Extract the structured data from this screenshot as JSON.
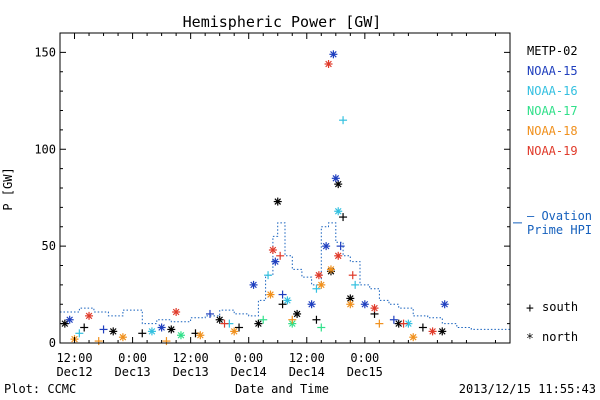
{
  "chart_data": {
    "type": "scatter",
    "title": "Hemispheric Power [GW]",
    "xlabel": "Date and Time",
    "ylabel": "P [GW]",
    "ylim": [
      0,
      160
    ],
    "yticks": [
      0,
      50,
      100,
      150
    ],
    "xlim": [
      "2013-12-12 09:00",
      "2013-12-16 06:00"
    ],
    "xticks": [
      {
        "line1": "12:00",
        "line2": "Dec12",
        "t": "2013-12-12 12:00"
      },
      {
        "line1": "0:00",
        "line2": "Dec13",
        "t": "2013-12-13 00:00"
      },
      {
        "line1": "12:00",
        "line2": "Dec13",
        "t": "2013-12-13 12:00"
      },
      {
        "line1": "0:00",
        "line2": "Dec14",
        "t": "2013-12-14 00:00"
      },
      {
        "line1": "12:00",
        "line2": "Dec14",
        "t": "2013-12-14 12:00"
      },
      {
        "line1": "0:00",
        "line2": "Dec15",
        "t": "2013-12-15 00:00"
      }
    ],
    "legend_position": "right",
    "footer_left": "Plot: CCMC",
    "footer_right": "2013/12/15 11:55:43",
    "markers": {
      "south_symbol": "+",
      "south_label": "south",
      "north_symbol": "*",
      "north_label": "north"
    },
    "ovation": {
      "label_line1": "— Ovation",
      "label_line2": "Prime HPI",
      "color": "#1560bd",
      "x": [
        "2013-12-12 09:00",
        "2013-12-12 13:00",
        "2013-12-12 16:00",
        "2013-12-12 19:00",
        "2013-12-12 22:00",
        "2013-12-13 02:00",
        "2013-12-13 05:00",
        "2013-12-13 08:00",
        "2013-12-13 12:00",
        "2013-12-13 15:00",
        "2013-12-13 18:00",
        "2013-12-13 21:00",
        "2013-12-14 00:00",
        "2013-12-14 02:00",
        "2013-12-14 03:30",
        "2013-12-14 05:00",
        "2013-12-14 06:00",
        "2013-12-14 07:30",
        "2013-12-14 09:00",
        "2013-12-14 11:00",
        "2013-12-14 13:00",
        "2013-12-14 15:00",
        "2013-12-14 16:30",
        "2013-12-14 18:00",
        "2013-12-14 19:30",
        "2013-12-14 21:00",
        "2013-12-14 23:00",
        "2013-12-15 01:00",
        "2013-12-15 03:00",
        "2013-12-15 05:00",
        "2013-12-15 07:00",
        "2013-12-15 10:00",
        "2013-12-15 13:00",
        "2013-12-15 16:00",
        "2013-12-15 19:00",
        "2013-12-15 22:00"
      ],
      "y": [
        16,
        18,
        16,
        14,
        17,
        10,
        12,
        11,
        13,
        14,
        17,
        15,
        14,
        22,
        35,
        55,
        62,
        45,
        38,
        34,
        30,
        60,
        62,
        52,
        45,
        42,
        30,
        28,
        22,
        20,
        18,
        14,
        13,
        10,
        8,
        7
      ]
    },
    "series": [
      {
        "name": "METP-02",
        "color": "#000000",
        "points": [
          {
            "t": "2013-12-12 10:00",
            "y": 10,
            "m": "*"
          },
          {
            "t": "2013-12-12 14:00",
            "y": 8,
            "m": "+"
          },
          {
            "t": "2013-12-12 20:00",
            "y": 6,
            "m": "*"
          },
          {
            "t": "2013-12-13 02:00",
            "y": 5,
            "m": "+"
          },
          {
            "t": "2013-12-13 08:00",
            "y": 7,
            "m": "*"
          },
          {
            "t": "2013-12-13 13:00",
            "y": 5,
            "m": "+"
          },
          {
            "t": "2013-12-13 18:00",
            "y": 12,
            "m": "*"
          },
          {
            "t": "2013-12-13 22:00",
            "y": 8,
            "m": "+"
          },
          {
            "t": "2013-12-14 02:00",
            "y": 10,
            "m": "*"
          },
          {
            "t": "2013-12-14 06:00",
            "y": 73,
            "m": "*"
          },
          {
            "t": "2013-12-14 07:00",
            "y": 20,
            "m": "+"
          },
          {
            "t": "2013-12-14 10:00",
            "y": 15,
            "m": "*"
          },
          {
            "t": "2013-12-14 14:00",
            "y": 12,
            "m": "+"
          },
          {
            "t": "2013-12-14 17:00",
            "y": 37,
            "m": "*"
          },
          {
            "t": "2013-12-14 18:30",
            "y": 82,
            "m": "*"
          },
          {
            "t": "2013-12-14 19:30",
            "y": 65,
            "m": "+"
          },
          {
            "t": "2013-12-14 21:00",
            "y": 23,
            "m": "*"
          },
          {
            "t": "2013-12-15 02:00",
            "y": 15,
            "m": "+"
          },
          {
            "t": "2013-12-15 07:00",
            "y": 10,
            "m": "*"
          },
          {
            "t": "2013-12-15 12:00",
            "y": 8,
            "m": "+"
          },
          {
            "t": "2013-12-15 16:00",
            "y": 6,
            "m": "*"
          }
        ]
      },
      {
        "name": "NOAA-15",
        "color": "#1f3fbf",
        "points": [
          {
            "t": "2013-12-12 11:00",
            "y": 12,
            "m": "*"
          },
          {
            "t": "2013-12-12 18:00",
            "y": 7,
            "m": "+"
          },
          {
            "t": "2013-12-13 06:00",
            "y": 8,
            "m": "*"
          },
          {
            "t": "2013-12-13 16:00",
            "y": 15,
            "m": "+"
          },
          {
            "t": "2013-12-14 01:00",
            "y": 30,
            "m": "*"
          },
          {
            "t": "2013-12-14 05:30",
            "y": 42,
            "m": "*"
          },
          {
            "t": "2013-12-14 07:00",
            "y": 25,
            "m": "+"
          },
          {
            "t": "2013-12-14 13:00",
            "y": 20,
            "m": "*"
          },
          {
            "t": "2013-12-14 16:00",
            "y": 50,
            "m": "*"
          },
          {
            "t": "2013-12-14 17:30",
            "y": 149,
            "m": "*"
          },
          {
            "t": "2013-12-14 18:00",
            "y": 85,
            "m": "*"
          },
          {
            "t": "2013-12-14 19:00",
            "y": 50,
            "m": "+"
          },
          {
            "t": "2013-12-15 00:00",
            "y": 20,
            "m": "*"
          },
          {
            "t": "2013-12-15 06:00",
            "y": 12,
            "m": "+"
          },
          {
            "t": "2013-12-15 16:30",
            "y": 20,
            "m": "*"
          }
        ]
      },
      {
        "name": "NOAA-16",
        "color": "#33c0e0",
        "points": [
          {
            "t": "2013-12-12 13:00",
            "y": 5,
            "m": "+"
          },
          {
            "t": "2013-12-13 04:00",
            "y": 6,
            "m": "*"
          },
          {
            "t": "2013-12-13 20:00",
            "y": 10,
            "m": "+"
          },
          {
            "t": "2013-12-14 04:00",
            "y": 35,
            "m": "+"
          },
          {
            "t": "2013-12-14 08:00",
            "y": 22,
            "m": "*"
          },
          {
            "t": "2013-12-14 14:00",
            "y": 28,
            "m": "+"
          },
          {
            "t": "2013-12-14 18:30",
            "y": 68,
            "m": "*"
          },
          {
            "t": "2013-12-14 19:30",
            "y": 115,
            "m": "+"
          },
          {
            "t": "2013-12-14 22:00",
            "y": 30,
            "m": "+"
          },
          {
            "t": "2013-12-15 09:00",
            "y": 10,
            "m": "*"
          }
        ]
      },
      {
        "name": "NOAA-17",
        "color": "#30e08a",
        "points": [
          {
            "t": "2013-12-13 10:00",
            "y": 4,
            "m": "*"
          },
          {
            "t": "2013-12-14 03:00",
            "y": 12,
            "m": "+"
          },
          {
            "t": "2013-12-14 09:00",
            "y": 10,
            "m": "*"
          },
          {
            "t": "2013-12-14 15:00",
            "y": 8,
            "m": "+"
          }
        ]
      },
      {
        "name": "NOAA-18",
        "color": "#f0901c",
        "points": [
          {
            "t": "2013-12-12 12:00",
            "y": 2,
            "m": "*"
          },
          {
            "t": "2013-12-12 17:00",
            "y": 1,
            "m": "+"
          },
          {
            "t": "2013-12-12 22:00",
            "y": 3,
            "m": "*"
          },
          {
            "t": "2013-12-13 07:00",
            "y": 1,
            "m": "+"
          },
          {
            "t": "2013-12-13 14:00",
            "y": 4,
            "m": "*"
          },
          {
            "t": "2013-12-13 21:00",
            "y": 6,
            "m": "*"
          },
          {
            "t": "2013-12-14 04:30",
            "y": 25,
            "m": "*"
          },
          {
            "t": "2013-12-14 09:00",
            "y": 12,
            "m": "+"
          },
          {
            "t": "2013-12-14 15:00",
            "y": 30,
            "m": "*"
          },
          {
            "t": "2013-12-14 17:00",
            "y": 38,
            "m": "*"
          },
          {
            "t": "2013-12-14 21:00",
            "y": 20,
            "m": "*"
          },
          {
            "t": "2013-12-15 03:00",
            "y": 10,
            "m": "+"
          },
          {
            "t": "2013-12-15 10:00",
            "y": 3,
            "m": "*"
          }
        ]
      },
      {
        "name": "NOAA-19",
        "color": "#e03a2a",
        "points": [
          {
            "t": "2013-12-12 15:00",
            "y": 14,
            "m": "*"
          },
          {
            "t": "2013-12-13 09:00",
            "y": 16,
            "m": "*"
          },
          {
            "t": "2013-12-13 19:00",
            "y": 10,
            "m": "+"
          },
          {
            "t": "2013-12-14 05:00",
            "y": 48,
            "m": "*"
          },
          {
            "t": "2013-12-14 06:30",
            "y": 45,
            "m": "+"
          },
          {
            "t": "2013-12-14 14:30",
            "y": 35,
            "m": "*"
          },
          {
            "t": "2013-12-14 16:30",
            "y": 144,
            "m": "*"
          },
          {
            "t": "2013-12-14 18:30",
            "y": 45,
            "m": "*"
          },
          {
            "t": "2013-12-14 21:30",
            "y": 35,
            "m": "+"
          },
          {
            "t": "2013-12-15 02:00",
            "y": 18,
            "m": "*"
          },
          {
            "t": "2013-12-15 08:00",
            "y": 10,
            "m": "+"
          },
          {
            "t": "2013-12-15 14:00",
            "y": 6,
            "m": "*"
          }
        ]
      }
    ]
  }
}
